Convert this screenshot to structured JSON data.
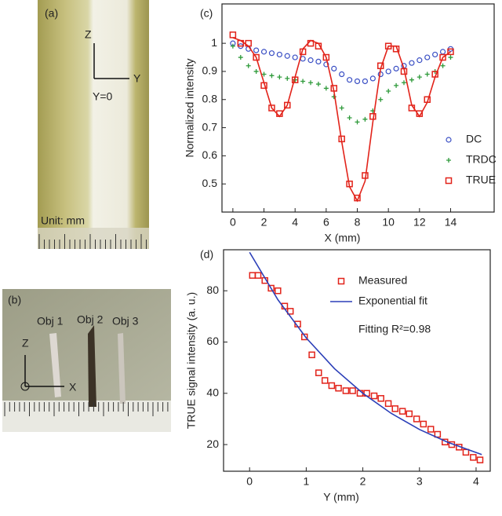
{
  "panels": {
    "a": {
      "label": "(a)",
      "z": "Z",
      "y": "Y",
      "origin": "Y=0",
      "unit": "Unit: mm"
    },
    "b": {
      "label": "(b)",
      "objects": [
        "Obj 1",
        "Obj 2",
        "Obj 3"
      ],
      "z": "Z",
      "x": "X"
    }
  },
  "chart_data": [
    {
      "type": "scatter",
      "panel_label": "(c)",
      "x_label": "X (mm)",
      "y_label": "Normalized intensity",
      "xlim": [
        -0.7,
        16.8
      ],
      "ylim": [
        0.4,
        1.14
      ],
      "xticks": [
        0,
        2,
        4,
        6,
        8,
        10,
        12,
        14
      ],
      "yticks": [
        0.5,
        0.6,
        0.7,
        0.8,
        0.9,
        1.0
      ],
      "legend": "lower right",
      "x": [
        0,
        0.5,
        1,
        1.5,
        2,
        2.5,
        3,
        3.5,
        4,
        4.5,
        5,
        5.5,
        6,
        6.5,
        7,
        7.5,
        8,
        8.5,
        9,
        9.5,
        10,
        10.5,
        11,
        11.5,
        12,
        12.5,
        13,
        13.5,
        14
      ],
      "series": [
        {
          "name": "DC",
          "color": "#3a4fc4",
          "marker": "circle",
          "values": [
            1.0,
            0.99,
            0.98,
            0.975,
            0.97,
            0.965,
            0.96,
            0.955,
            0.95,
            0.945,
            0.94,
            0.935,
            0.925,
            0.91,
            0.89,
            0.87,
            0.865,
            0.865,
            0.875,
            0.89,
            0.9,
            0.91,
            0.92,
            0.93,
            0.94,
            0.95,
            0.96,
            0.97,
            0.98
          ]
        },
        {
          "name": "TRDC",
          "color": "#2e9a3a",
          "marker": "plus",
          "values": [
            0.99,
            0.95,
            0.92,
            0.9,
            0.89,
            0.885,
            0.88,
            0.875,
            0.87,
            0.865,
            0.86,
            0.855,
            0.84,
            0.81,
            0.77,
            0.735,
            0.72,
            0.73,
            0.76,
            0.8,
            0.83,
            0.85,
            0.86,
            0.87,
            0.88,
            0.89,
            0.9,
            0.92,
            0.95
          ]
        },
        {
          "name": "TRUE",
          "color": "#e2231a",
          "marker": "square",
          "values": [
            1.03,
            1.0,
            1.0,
            0.95,
            0.85,
            0.77,
            0.75,
            0.78,
            0.87,
            0.97,
            1.0,
            0.99,
            0.95,
            0.84,
            0.66,
            0.5,
            0.45,
            0.53,
            0.74,
            0.92,
            0.99,
            0.98,
            0.9,
            0.77,
            0.75,
            0.8,
            0.89,
            0.95,
            0.97
          ]
        },
        {
          "color": "#e2231a",
          "marker": "line",
          "values": [
            1.02,
            1.01,
            0.99,
            0.95,
            0.86,
            0.77,
            0.74,
            0.78,
            0.88,
            0.98,
            1.01,
            1.0,
            0.95,
            0.83,
            0.65,
            0.49,
            0.44,
            0.51,
            0.72,
            0.91,
            0.99,
            0.99,
            0.91,
            0.78,
            0.74,
            0.79,
            0.88,
            0.95,
            0.97
          ]
        }
      ]
    },
    {
      "type": "scatter",
      "panel_label": "(d)",
      "x_label": "Y (mm)",
      "y_label": "TRUE signal intensity (a. u.)",
      "xlim": [
        -0.46,
        4.25
      ],
      "ylim": [
        9.6,
        96
      ],
      "xticks": [
        0,
        1,
        2,
        3,
        4
      ],
      "yticks": [
        20,
        40,
        60,
        80
      ],
      "legend": "upper right",
      "annotation": "Fitting R²=0.98",
      "series": [
        {
          "name": "Measured",
          "color": "#e2231a",
          "marker": "square",
          "x": [
            0.05,
            0.15,
            0.27,
            0.38,
            0.5,
            0.62,
            0.72,
            0.85,
            0.97,
            1.1,
            1.22,
            1.33,
            1.45,
            1.57,
            1.7,
            1.82,
            1.95,
            2.07,
            2.2,
            2.32,
            2.45,
            2.57,
            2.7,
            2.82,
            2.95,
            3.07,
            3.2,
            3.32,
            3.45,
            3.57,
            3.7,
            3.82,
            3.95,
            4.07
          ],
          "values": [
            86,
            86,
            84,
            81,
            80,
            74,
            72,
            67,
            62,
            55,
            48,
            45,
            43,
            42,
            41,
            41,
            40,
            40,
            39,
            38,
            36,
            34,
            33,
            32,
            30,
            28,
            26,
            24,
            21,
            20,
            19,
            17,
            15,
            14
          ]
        },
        {
          "name": "Exponential fit",
          "color": "#2b3fb8",
          "marker": "line",
          "x": [
            0,
            0.5,
            1,
            1.5,
            2,
            2.5,
            3,
            3.5,
            4.1
          ],
          "values": [
            95,
            76.5,
            61.6,
            49.6,
            40.0,
            32.2,
            25.9,
            20.9,
            16.1
          ]
        }
      ]
    }
  ]
}
